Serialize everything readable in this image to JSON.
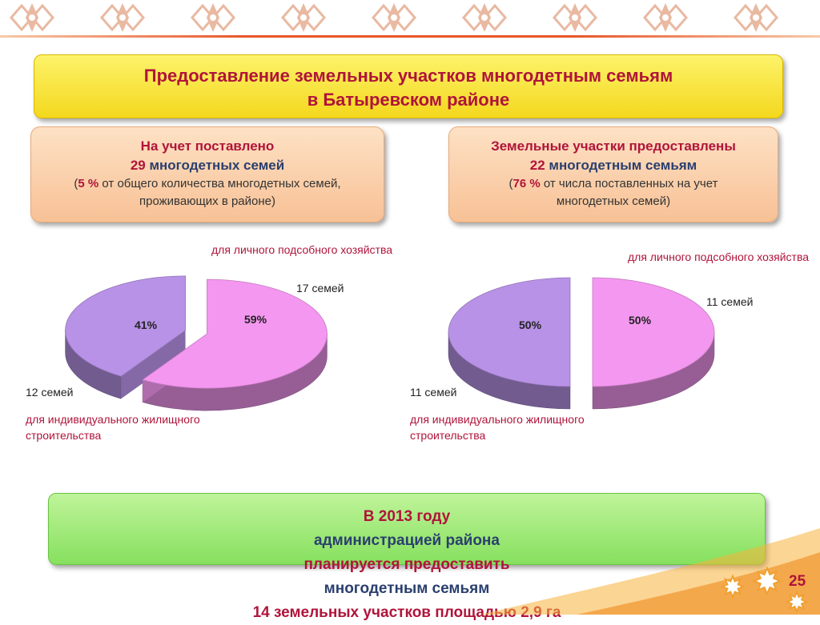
{
  "title": {
    "line1": "Предоставление земельных участков многодетным семьям",
    "line2": "в Батыревском районе"
  },
  "left_box": {
    "line1": "На учет поставлено",
    "line2_number": "29",
    "line2_text": " многодетных семей",
    "line3_open": "(",
    "line3_pct": "5 %",
    "line3_text": " от общего количества многодетных семей,",
    "line4": "проживающих в районе)"
  },
  "right_box": {
    "line1": "Земельные участки предоставлены",
    "line2_number": "22",
    "line2_text": " многодетным семьям",
    "line3_open": "(",
    "line3_pct": "76 %",
    "line3_text": " от числа поставленных на учет",
    "line4": "многодетных семей)"
  },
  "chart_data": [
    {
      "type": "pie",
      "title": "",
      "slices": [
        {
          "label": "для личного подсобного хозяйства",
          "count_label": "17 семей",
          "value": 59,
          "value_label": "59%",
          "color": "#f497f0"
        },
        {
          "label": "для индивидуального жилищного строительства",
          "count_label": "12  семей",
          "value": 41,
          "value_label": "41%",
          "color": "#b892e6"
        }
      ]
    },
    {
      "type": "pie",
      "title": "",
      "slices": [
        {
          "label": "для личного подсобного хозяйства",
          "count_label": "11 семей",
          "value": 50,
          "value_label": "50%",
          "color": "#f497f0"
        },
        {
          "label": "для индивидуального жилищного строительства",
          "count_label": "11  семей",
          "value": 50,
          "value_label": "50%",
          "color": "#b892e6"
        }
      ]
    }
  ],
  "bottom": {
    "p1": "В 2013 году ",
    "p2": "администрацией района",
    "p3": " планируется предоставить",
    "p4": "многодетным семьям ",
    "p5": "14 земельных участков площадью 2,9 га"
  },
  "page_number": "25",
  "colors": {
    "accent_red": "#b0143a",
    "navy": "#2a3f6e",
    "title_bg": "#f9e640",
    "info_bg": "#fbd2ae",
    "bottom_bg": "#a3ea7c"
  }
}
